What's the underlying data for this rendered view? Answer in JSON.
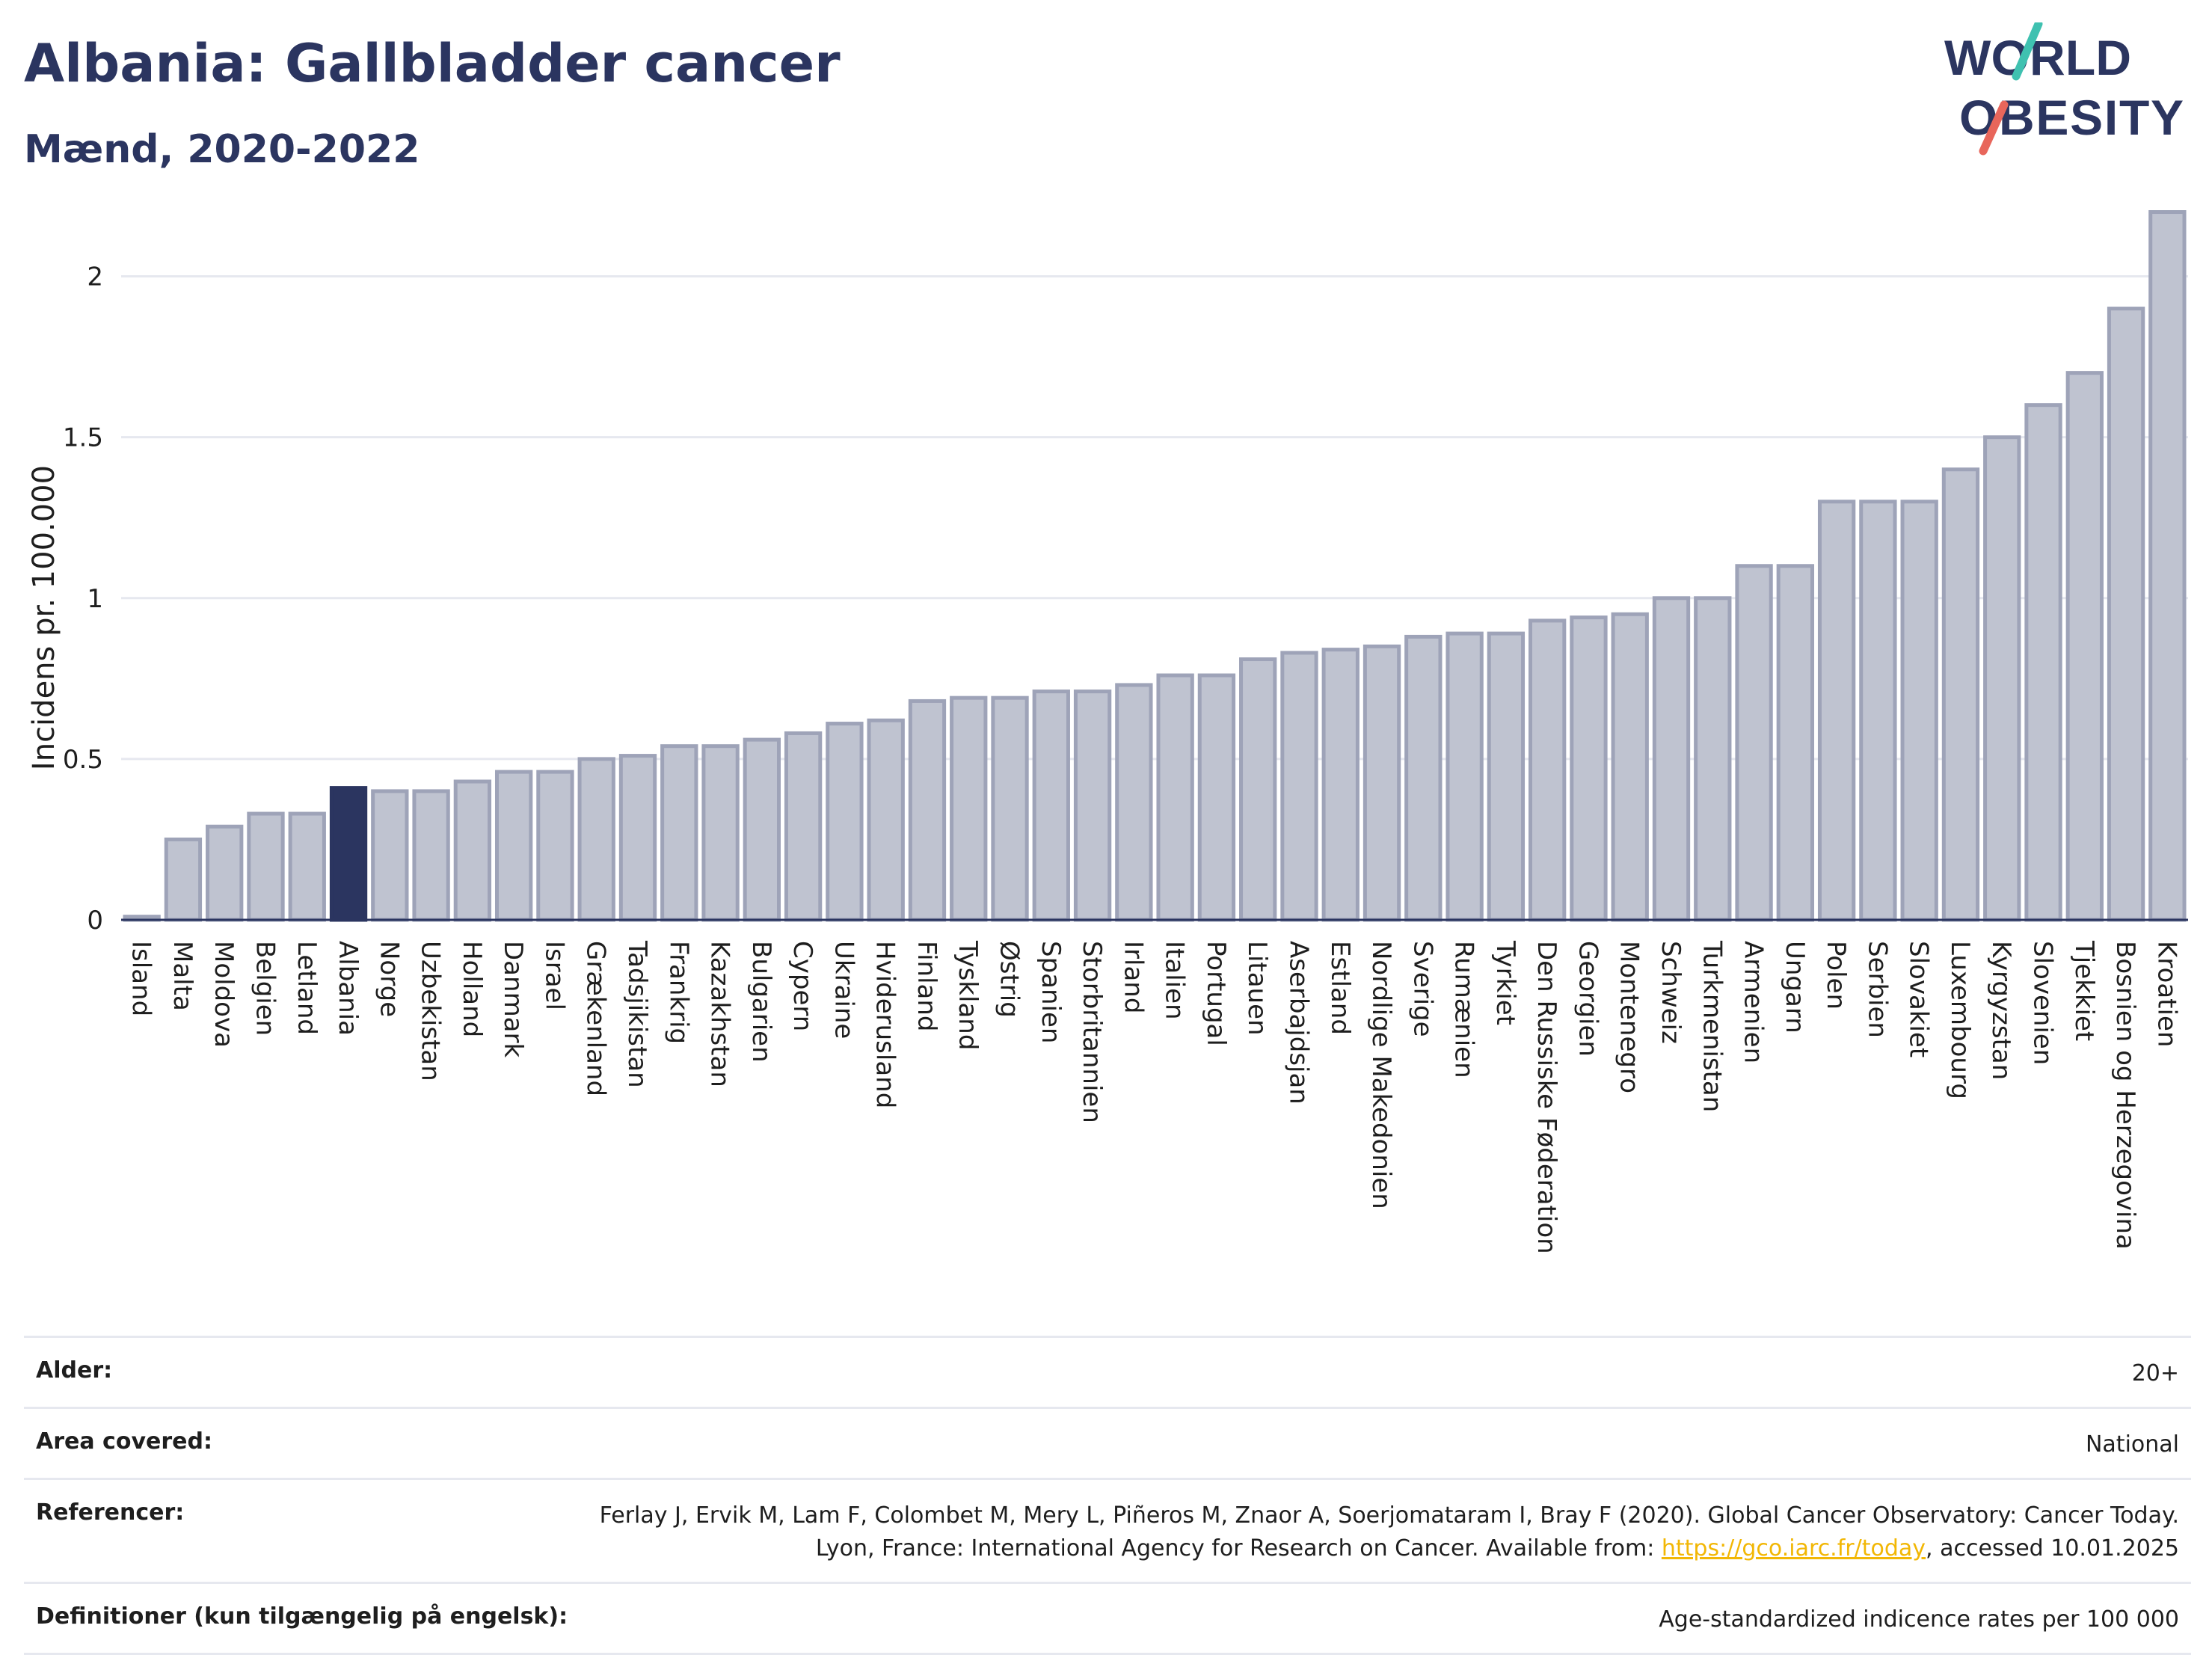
{
  "header": {
    "title": "Albania: Gallbladder cancer",
    "subtitle": "Mænd, 2020-2022"
  },
  "logo": {
    "line1": "WORLD",
    "line2": "OBESITY",
    "colors": {
      "text": "#2b3560",
      "slash_top": "#3fc1b0",
      "slash_bottom": "#e8665b"
    }
  },
  "chart_data": {
    "type": "bar",
    "title": "Albania: Gallbladder cancer",
    "subtitle": "Mænd, 2020-2022",
    "xlabel": "",
    "ylabel": "Incidens pr. 100.000",
    "ylim": [
      0,
      2.25
    ],
    "yticks": [
      0,
      0.5,
      1,
      1.5,
      2
    ],
    "ytick_labels": [
      "0",
      "0.5",
      "1",
      "1.5",
      "2"
    ],
    "grid": true,
    "highlight": "Albania",
    "colors": {
      "bar": "#bfc3d0",
      "bar_edge": "#9ea3b8",
      "highlight": "#2b3560",
      "grid": "#e6e8ef",
      "axis": "#2b3560"
    },
    "categories": [
      "Island",
      "Malta",
      "Moldova",
      "Belgien",
      "Letland",
      "Albania",
      "Norge",
      "Uzbekistan",
      "Holland",
      "Danmark",
      "Israel",
      "Grækenland",
      "Tadsjikistan",
      "Frankrig",
      "Kazakhstan",
      "Bulgarien",
      "Cypern",
      "Ukraine",
      "Hviderusland",
      "Finland",
      "Tyskland",
      "Østrig",
      "Spanien",
      "Storbritannien",
      "Irland",
      "Italien",
      "Portugal",
      "Litauen",
      "Aserbajdsjan",
      "Estland",
      "Nordlige Makedonien",
      "Sverige",
      "Rumænien",
      "Tyrkiet",
      "Den Russiske Føderation",
      "Georgien",
      "Montenegro",
      "Schweiz",
      "Turkmenistan",
      "Armenien",
      "Ungarn",
      "Polen",
      "Serbien",
      "Slovakiet",
      "Luxembourg",
      "Kyrgyzstan",
      "Slovenien",
      "Tjekkiet",
      "Bosnien og Herzegovina",
      "Kroatien"
    ],
    "values": [
      0.01,
      0.25,
      0.29,
      0.33,
      0.33,
      0.41,
      0.4,
      0.4,
      0.43,
      0.46,
      0.46,
      0.5,
      0.51,
      0.54,
      0.54,
      0.56,
      0.58,
      0.61,
      0.62,
      0.68,
      0.69,
      0.69,
      0.71,
      0.71,
      0.73,
      0.76,
      0.76,
      0.81,
      0.83,
      0.84,
      0.85,
      0.88,
      0.89,
      0.89,
      0.93,
      0.94,
      0.95,
      1.0,
      1.0,
      1.1,
      1.1,
      1.3,
      1.3,
      1.3,
      1.4,
      1.5,
      1.6,
      1.7,
      1.9,
      2.2
    ]
  },
  "meta": {
    "rows": [
      {
        "label": "Alder:",
        "value": "20+"
      },
      {
        "label": "Area covered:",
        "value": "National"
      },
      {
        "label": "Referencer:",
        "value_pre": "Ferlay J, Ervik M, Lam F, Colombet M, Mery L, Piñeros M, Znaor A, Soerjomataram I, Bray F (2020). Global Cancer Observatory: Cancer Today. Lyon, France: International Agency for Research on Cancer. Available from: ",
        "link": "https://gco.iarc.fr/today",
        "value_post": ", accessed 10.01.2025"
      },
      {
        "label": "Definitioner (kun tilgængelig på engelsk):",
        "value": "Age-standardized indicence rates per 100 000"
      }
    ]
  }
}
